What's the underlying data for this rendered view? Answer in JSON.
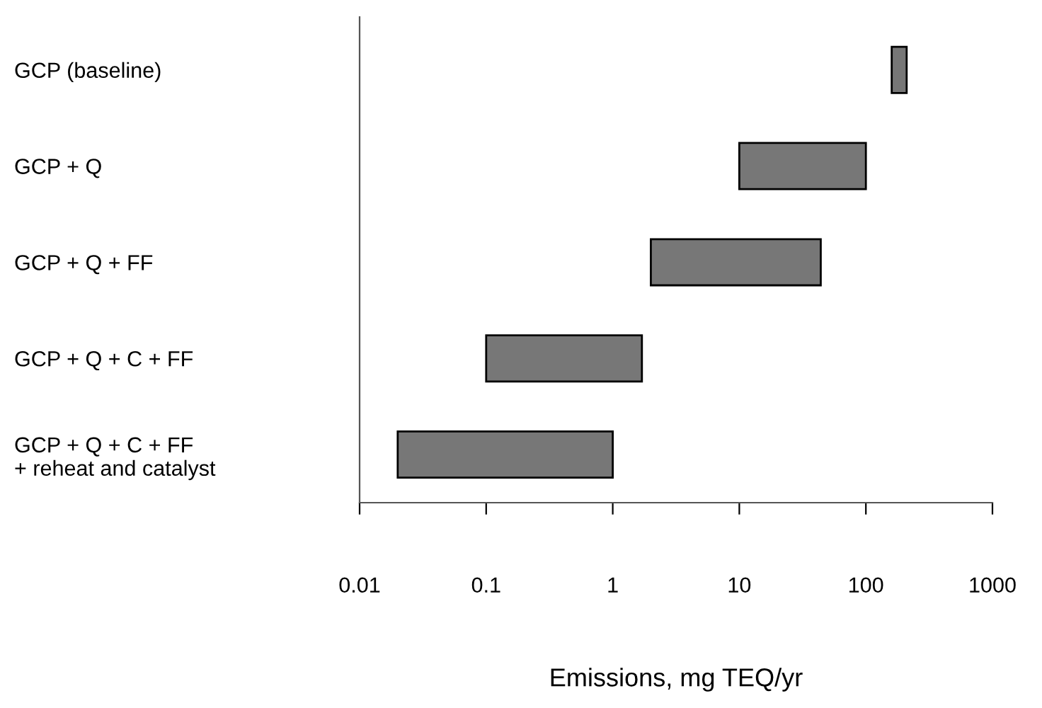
{
  "chart_data": {
    "type": "bar",
    "orientation": "horizontal",
    "log": "x",
    "xlabel": "Emissions, mg TEQ/yr",
    "categories": [
      "GCP (baseline)",
      "GCP + Q",
      "GCP + Q + FF",
      "GCP + Q + C + FF",
      "GCP + Q + C + FF\n+ reheat and catalyst"
    ],
    "base": [
      160,
      10,
      2,
      0.1,
      0.02
    ],
    "values": [
      50,
      90,
      42,
      1.6,
      0.98
    ],
    "color": "#777777",
    "xlim": [
      0.01,
      1000
    ],
    "xticks": [
      0.01,
      0.1,
      1,
      10,
      100,
      1000
    ],
    "grid": false,
    "legend": false
  }
}
